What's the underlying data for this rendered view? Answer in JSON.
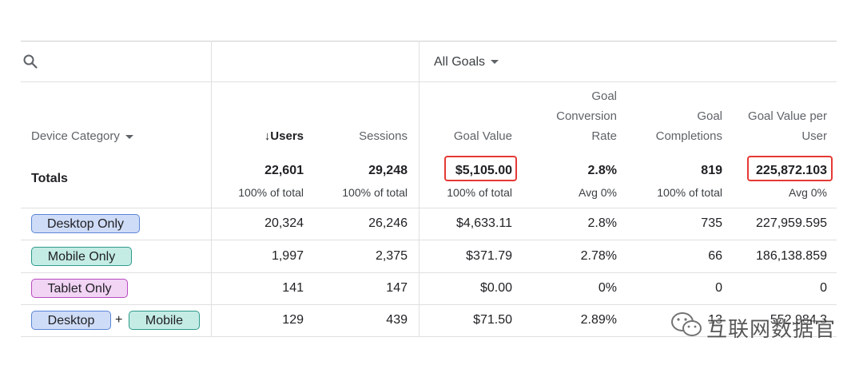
{
  "goal_selector": {
    "label": "All Goals"
  },
  "headers": {
    "device_category": "Device Category",
    "users": "↓Users",
    "sessions": "Sessions",
    "goal_value": "Goal Value",
    "goal_conversion_rate": [
      "Goal",
      "Conversion",
      "Rate"
    ],
    "goal_completions": [
      "Goal",
      "Completions"
    ],
    "goal_value_per_user": [
      "Goal Value per",
      "User"
    ]
  },
  "totals": {
    "label": "Totals",
    "users": "22,601",
    "users_sub": "100% of total",
    "sessions": "29,248",
    "sessions_sub": "100% of total",
    "goal_value": "$5,105.00",
    "goal_value_sub": "100% of total",
    "conversion_rate": "2.8%",
    "conversion_rate_sub": "Avg 0%",
    "completions": "819",
    "completions_sub": "100% of total",
    "value_per_user": "225,872.103",
    "value_per_user_sub": "Avg 0%"
  },
  "rows": [
    {
      "chips": [
        "Desktop Only"
      ],
      "users": "20,324",
      "sessions": "26,246",
      "goal_value": "$4,633.11",
      "conversion_rate": "2.8%",
      "completions": "735",
      "value_per_user": "227,959.595"
    },
    {
      "chips": [
        "Mobile Only"
      ],
      "users": "1,997",
      "sessions": "2,375",
      "goal_value": "$371.79",
      "conversion_rate": "2.78%",
      "completions": "66",
      "value_per_user": "186,138.859"
    },
    {
      "chips": [
        "Tablet Only"
      ],
      "users": "141",
      "sessions": "147",
      "goal_value": "$0.00",
      "conversion_rate": "0%",
      "completions": "0",
      "value_per_user": "0"
    },
    {
      "chips": [
        "Desktop",
        "+",
        "Mobile"
      ],
      "users": "129",
      "sessions": "439",
      "goal_value": "$71.50",
      "conversion_rate": "2.89%",
      "completions": "13",
      "value_per_user": "552,984.3"
    }
  ],
  "watermark": {
    "text": "互联网数据官"
  },
  "colors": {
    "desktop_chip": "#cfdcf7",
    "mobile_chip": "#c4ece5",
    "tablet_chip": "#f2d4f5",
    "highlight": "#e53935"
  },
  "icons": {
    "search": "search-icon",
    "dropdown": "caret-down-icon",
    "watermark": "wechat-icon"
  }
}
